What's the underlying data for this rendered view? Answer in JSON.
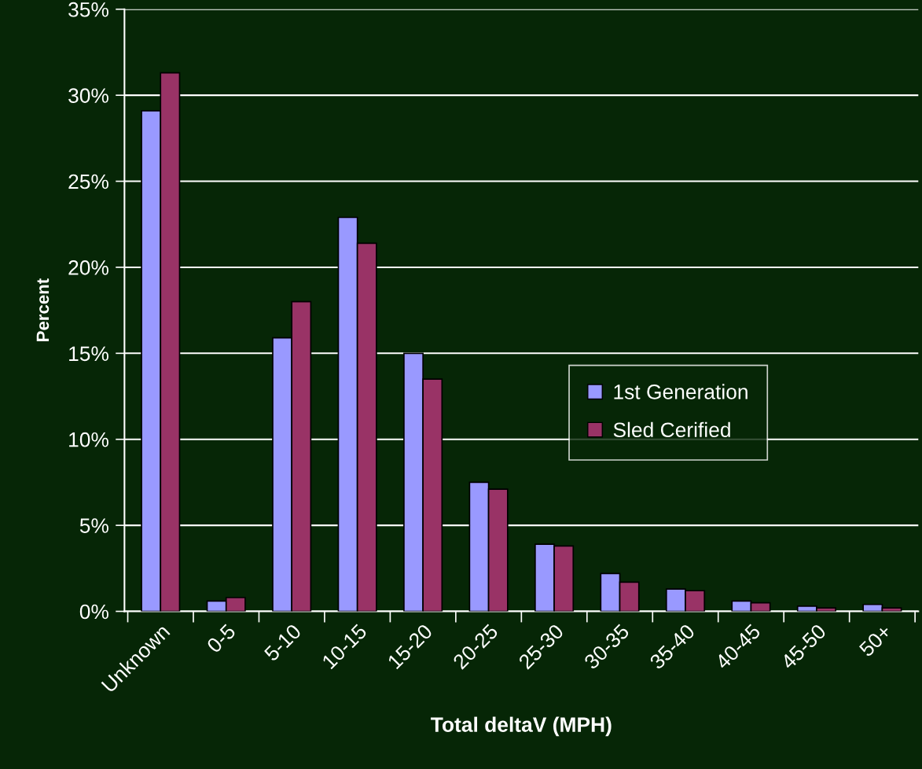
{
  "chart_data": {
    "type": "bar",
    "xlabel": "Total deltaV (MPH)",
    "ylabel": "Percent",
    "categories": [
      "Unknown",
      "0-5",
      "5-10",
      "10-15",
      "15-20",
      "20-25",
      "25-30",
      "30-35",
      "35-40",
      "40-45",
      "45-50",
      "50+"
    ],
    "series": [
      {
        "name": "1st Generation",
        "color": "#9999ff",
        "values": [
          29.1,
          0.6,
          15.9,
          22.9,
          15.0,
          7.5,
          3.9,
          2.2,
          1.3,
          0.6,
          0.3,
          0.4
        ]
      },
      {
        "name": "Sled Cerified",
        "color": "#993366",
        "values": [
          31.3,
          0.8,
          18.0,
          21.4,
          13.5,
          7.1,
          3.8,
          1.7,
          1.2,
          0.5,
          0.2,
          0.2
        ]
      }
    ],
    "ylim": [
      0,
      35
    ],
    "yticks": [
      {
        "value": 0,
        "label": "0%"
      },
      {
        "value": 5,
        "label": "5%"
      },
      {
        "value": 10,
        "label": "10%"
      },
      {
        "value": 15,
        "label": "15%"
      },
      {
        "value": 20,
        "label": "20%"
      },
      {
        "value": 25,
        "label": "25%"
      },
      {
        "value": 30,
        "label": "30%"
      },
      {
        "value": 35,
        "label": "35%"
      }
    ],
    "grid": "y",
    "legend": "right"
  }
}
